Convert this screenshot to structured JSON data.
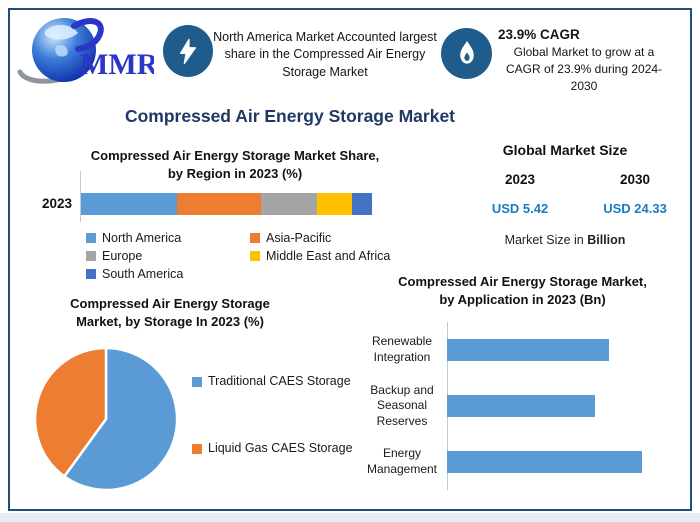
{
  "brand": {
    "name": "MMR"
  },
  "header": {
    "highlight": {
      "icon": "lightning-icon",
      "text": "North America Market Accounted largest share in the Compressed Air Energy Storage Market"
    },
    "cagr": {
      "icon": "flame-icon",
      "title": "23.9% CAGR",
      "text": "Global Market to grow at a CAGR of 23.9% during 2024-2030"
    }
  },
  "page_title": "Compressed Air Energy Storage Market",
  "market_size": {
    "title": "Global Market Size",
    "year_left": "2023",
    "year_right": "2030",
    "value_left": "USD 5.42",
    "value_right": "USD 24.33",
    "note_regular": "Market Size in ",
    "note_bold": "Billion"
  },
  "colors": {
    "title_navy": "#1F3864",
    "badge_blue": "#1F5C8B",
    "value_blue": "#1B7CC2",
    "frame_border": "#1F4E79",
    "series_blue": "#5B9BD5",
    "series_orange": "#ED7D31",
    "series_gray": "#A5A5A5",
    "series_yellow": "#FFC000",
    "series_darkblue": "#4472C4"
  },
  "chart_data": [
    {
      "type": "bar",
      "subtype": "stacked-horizontal",
      "title_lines": [
        "Compressed Air Energy Storage Market Share,",
        "by Region in 2023 (%)"
      ],
      "categories": [
        "2023"
      ],
      "series": [
        {
          "name": "North America",
          "values": [
            33
          ],
          "color": "#5B9BD5"
        },
        {
          "name": "Asia-Pacific",
          "values": [
            29
          ],
          "color": "#ED7D31"
        },
        {
          "name": "Europe",
          "values": [
            19
          ],
          "color": "#A5A5A5"
        },
        {
          "name": "Middle East and Africa",
          "values": [
            12
          ],
          "color": "#FFC000"
        },
        {
          "name": "South America",
          "values": [
            7
          ],
          "color": "#4472C4"
        }
      ],
      "xlim": [
        0,
        100
      ],
      "estimated": true,
      "legend_position": "bottom"
    },
    {
      "type": "pie",
      "title_lines": [
        "Compressed Air Energy Storage",
        "Market, by Storage In 2023 (%)"
      ],
      "labels": [
        "Traditional CAES Storage",
        "Liquid Gas CAES Storage"
      ],
      "values": [
        60,
        40
      ],
      "colors": [
        "#5B9BD5",
        "#ED7D31"
      ],
      "start_angle_deg": 0,
      "direction": "clockwise",
      "estimated": true,
      "legend_position": "right"
    },
    {
      "type": "bar",
      "subtype": "horizontal",
      "title_lines": [
        "Compressed Air Energy Storage Market,",
        "by Application in 2023 (Bn)"
      ],
      "categories": [
        "Renewable Integration",
        "Backup and Seasonal Reserves",
        "Energy Management"
      ],
      "values": [
        1.7,
        1.55,
        2.05
      ],
      "bar_color": "#5B9BD5",
      "xlim": [
        0,
        2.5
      ],
      "estimated": true
    }
  ]
}
